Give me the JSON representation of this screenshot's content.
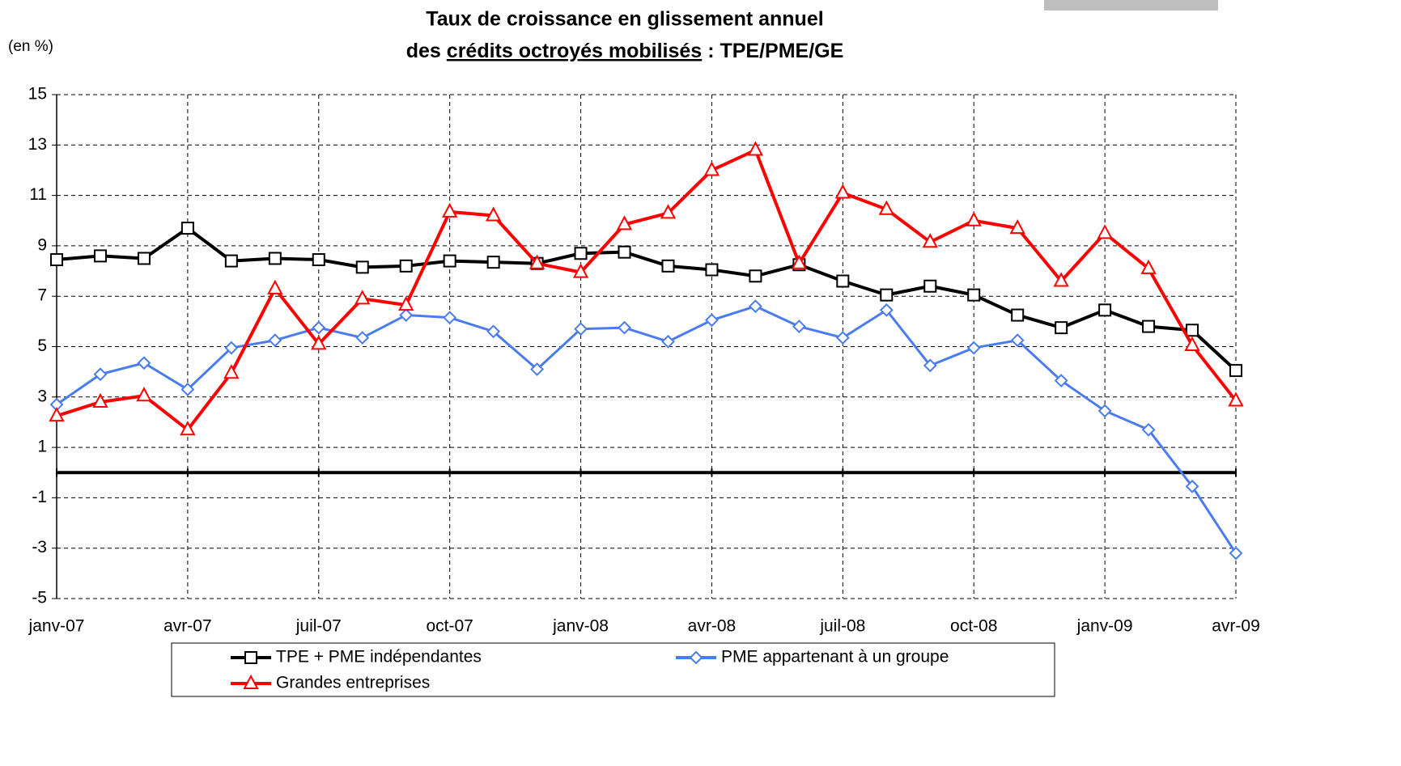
{
  "chart_data": {
    "type": "line",
    "title": "Taux de croissance en glissement annuel",
    "title_line2": [
      "des",
      "crédits octroyés mobilisés",
      ": TPE/PME/GE"
    ],
    "y_label": "(en %)",
    "categories": [
      "janv-07",
      null,
      null,
      "avr-07",
      null,
      null,
      "juil-07",
      null,
      null,
      "oct-07",
      null,
      null,
      "janv-08",
      null,
      null,
      "avr-08",
      null,
      null,
      "juil-08",
      null,
      null,
      "oct-08",
      null,
      null,
      "janv-09",
      null,
      null,
      "avr-09"
    ],
    "series": [
      {
        "name": "TPE + PME indépendantes",
        "color": "#000000",
        "marker": "square",
        "values": [
          8.45,
          8.6,
          8.5,
          9.7,
          8.4,
          8.5,
          8.45,
          8.15,
          8.2,
          8.4,
          8.35,
          8.3,
          8.7,
          8.75,
          8.2,
          8.05,
          7.8,
          8.25,
          7.6,
          7.05,
          7.4,
          7.05,
          6.25,
          5.75,
          6.45,
          5.8,
          5.65,
          4.05
        ]
      },
      {
        "name": "PME appartenant à un groupe",
        "color": "#4a7cf0",
        "marker": "diamond",
        "values": [
          2.7,
          3.9,
          4.35,
          3.3,
          4.95,
          5.25,
          5.75,
          5.35,
          6.25,
          6.15,
          5.6,
          4.1,
          5.7,
          5.75,
          5.2,
          6.05,
          6.6,
          5.8,
          5.35,
          6.45,
          4.25,
          4.95,
          5.25,
          3.65,
          2.45,
          1.7,
          -0.55,
          -3.2
        ]
      },
      {
        "name": "Grandes entreprises",
        "color": "#ff0000",
        "marker": "triangle",
        "values": [
          2.25,
          2.8,
          3.05,
          1.7,
          3.95,
          7.3,
          5.1,
          6.9,
          6.65,
          10.35,
          10.2,
          8.3,
          7.95,
          9.85,
          10.3,
          12.0,
          12.8,
          8.3,
          11.1,
          10.45,
          9.15,
          10.0,
          9.7,
          7.6,
          9.5,
          8.1,
          5.05,
          2.85
        ]
      }
    ],
    "ylim": [
      -5,
      15
    ],
    "yticks": [
      -5,
      -3,
      -1,
      1,
      3,
      5,
      7,
      9,
      11,
      13,
      15
    ],
    "grid": true
  }
}
